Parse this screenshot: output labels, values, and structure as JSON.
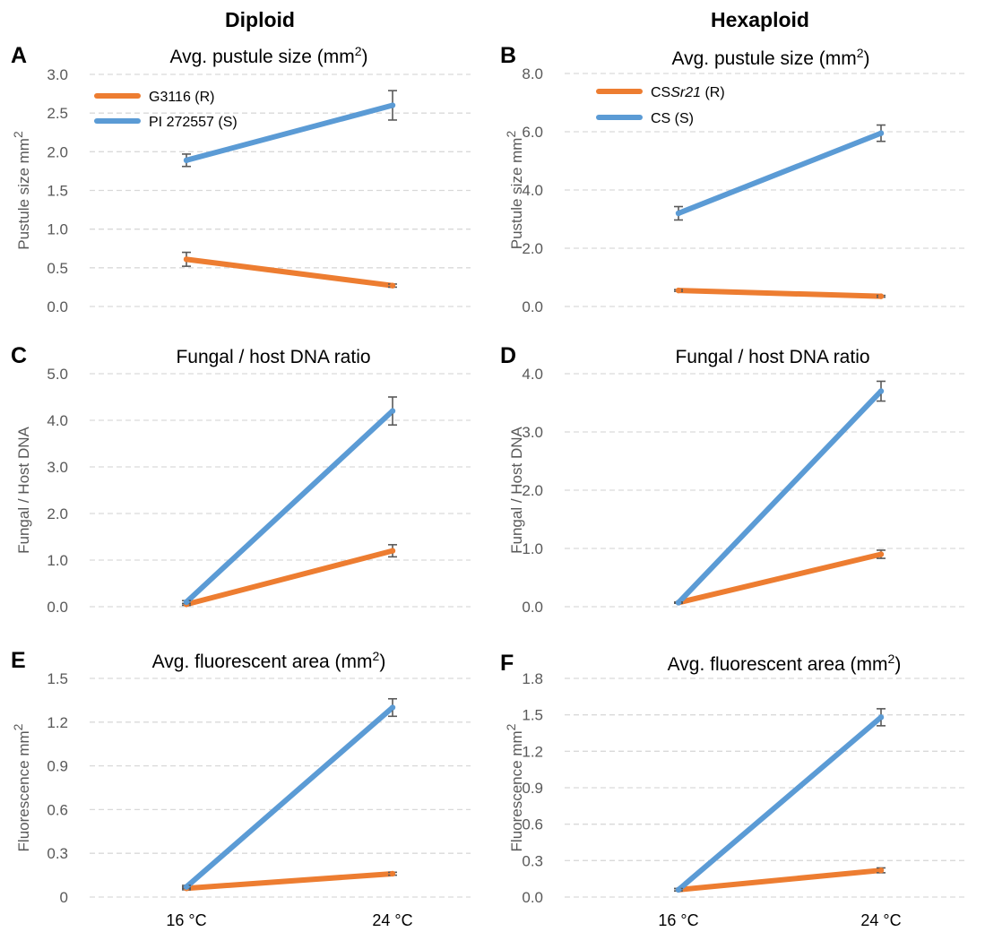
{
  "figure": {
    "column_headers": [
      "Diploid",
      "Hexaploid"
    ]
  },
  "legends": {
    "diploid": [
      {
        "label": "G3116 (R)",
        "color": "#ED7D31"
      },
      {
        "label": "PI 272557 (S)",
        "color": "#5B9BD5"
      }
    ],
    "hexaploid": [
      {
        "label_prefix": "CS",
        "label_italic": "Sr21",
        "label_suffix": " (R)",
        "color": "#ED7D31"
      },
      {
        "label": "CS (S)",
        "color": "#5B9BD5"
      }
    ]
  },
  "x_categories": [
    "16 °C",
    "24 °C"
  ],
  "chart_data": [
    {
      "type": "line",
      "panel": "A",
      "title": "Avg. pustule size (mm",
      "title_sup": "2",
      "title_end": ")",
      "ylabel": "Pustule size mm",
      "ylabel_sup": "2",
      "ylim": [
        0,
        3.0
      ],
      "ticks": [
        "0.0",
        "0.5",
        "1.0",
        "1.5",
        "2.0",
        "2.5",
        "3.0"
      ],
      "tick_values": [
        0,
        0.5,
        1.0,
        1.5,
        2.0,
        2.5,
        3.0
      ],
      "categories": [
        "16 °C",
        "24 °C"
      ],
      "series": [
        {
          "name": "G3116 (R)",
          "color": "#ED7D31",
          "values": [
            0.61,
            0.27
          ],
          "errors": [
            0.09,
            0.02
          ]
        },
        {
          "name": "PI 272557 (S)",
          "color": "#5B9BD5",
          "values": [
            1.89,
            2.6
          ],
          "errors": [
            0.08,
            0.19
          ]
        }
      ]
    },
    {
      "type": "line",
      "panel": "B",
      "title": "Avg. pustule size (mm",
      "title_sup": "2",
      "title_end": ")",
      "ylabel": "Pustule size mm",
      "ylabel_sup": "2",
      "ylim": [
        0,
        8.0
      ],
      "ticks": [
        "0.0",
        "2.0",
        "4.0",
        "6.0",
        "8.0"
      ],
      "tick_values": [
        0,
        2,
        4,
        6,
        8
      ],
      "categories": [
        "16 °C",
        "24 °C"
      ],
      "series": [
        {
          "name": "CSSr21 (R)",
          "color": "#ED7D31",
          "values": [
            0.55,
            0.35
          ],
          "errors": [
            0.03,
            0.03
          ]
        },
        {
          "name": "CS (S)",
          "color": "#5B9BD5",
          "values": [
            3.2,
            5.95
          ],
          "errors": [
            0.23,
            0.28
          ]
        }
      ]
    },
    {
      "type": "line",
      "panel": "C",
      "title": "Fungal / host DNA ratio",
      "title_sup": "",
      "title_end": "",
      "ylabel": "Fungal / Host DNA",
      "ylabel_sup": "",
      "ylim": [
        0,
        5.0
      ],
      "ticks": [
        "0.0",
        "1.0",
        "2.0",
        "3.0",
        "4.0",
        "5.0"
      ],
      "tick_values": [
        0,
        1,
        2,
        3,
        4,
        5
      ],
      "categories": [
        "16 °C",
        "24 °C"
      ],
      "series": [
        {
          "name": "G3116 (R)",
          "color": "#ED7D31",
          "values": [
            0.05,
            1.2
          ],
          "errors": [
            0.02,
            0.13
          ]
        },
        {
          "name": "PI 272557 (S)",
          "color": "#5B9BD5",
          "values": [
            0.1,
            4.2
          ],
          "errors": [
            0.03,
            0.3
          ]
        }
      ]
    },
    {
      "type": "line",
      "panel": "D",
      "title": "Fungal / host DNA ratio",
      "title_sup": "",
      "title_end": "",
      "ylabel": "Fungal / Host DNA",
      "ylabel_sup": "",
      "ylim": [
        0,
        4.0
      ],
      "ticks": [
        "0.0",
        "1.0",
        "2.0",
        "3.0",
        "4.0"
      ],
      "tick_values": [
        0,
        1,
        2,
        3,
        4
      ],
      "categories": [
        "16 °C",
        "24 °C"
      ],
      "series": [
        {
          "name": "CSSr21 (R)",
          "color": "#ED7D31",
          "values": [
            0.07,
            0.9
          ],
          "errors": [
            0.01,
            0.07
          ]
        },
        {
          "name": "CS (S)",
          "color": "#5B9BD5",
          "values": [
            0.07,
            3.7
          ],
          "errors": [
            0.01,
            0.17
          ]
        }
      ]
    },
    {
      "type": "line",
      "panel": "E",
      "title": "Avg. fluorescent area (mm",
      "title_sup": "2",
      "title_end": ")",
      "ylabel": "Fluorescence  mm",
      "ylabel_sup": "2",
      "ylim": [
        0,
        1.5
      ],
      "ticks": [
        "0",
        "0.3",
        "0.6",
        "0.9",
        "1.2",
        "1.5"
      ],
      "tick_values": [
        0,
        0.3,
        0.6,
        0.9,
        1.2,
        1.5
      ],
      "categories": [
        "16 °C",
        "24 °C"
      ],
      "series": [
        {
          "name": "G3116 (R)",
          "color": "#ED7D31",
          "values": [
            0.06,
            0.16
          ],
          "errors": [
            0.01,
            0.01
          ]
        },
        {
          "name": "PI 272557 (S)",
          "color": "#5B9BD5",
          "values": [
            0.07,
            1.3
          ],
          "errors": [
            0.01,
            0.06
          ]
        }
      ]
    },
    {
      "type": "line",
      "panel": "F",
      "title": "Avg. fluorescent area (mm",
      "title_sup": "2",
      "title_end": ")",
      "ylabel": "Fluorescence  mm",
      "ylabel_sup": "2",
      "ylim": [
        0,
        1.8
      ],
      "ticks": [
        "0.0",
        "0.3",
        "0.6",
        "0.9",
        "1.2",
        "1.5",
        "1.8"
      ],
      "tick_values": [
        0,
        0.3,
        0.6,
        0.9,
        1.2,
        1.5,
        1.8
      ],
      "categories": [
        "16 °C",
        "24 °C"
      ],
      "series": [
        {
          "name": "CSSr21 (R)",
          "color": "#ED7D31",
          "values": [
            0.06,
            0.22
          ],
          "errors": [
            0.01,
            0.02
          ]
        },
        {
          "name": "CS (S)",
          "color": "#5B9BD5",
          "values": [
            0.06,
            1.48
          ],
          "errors": [
            0.01,
            0.07
          ]
        }
      ]
    }
  ]
}
